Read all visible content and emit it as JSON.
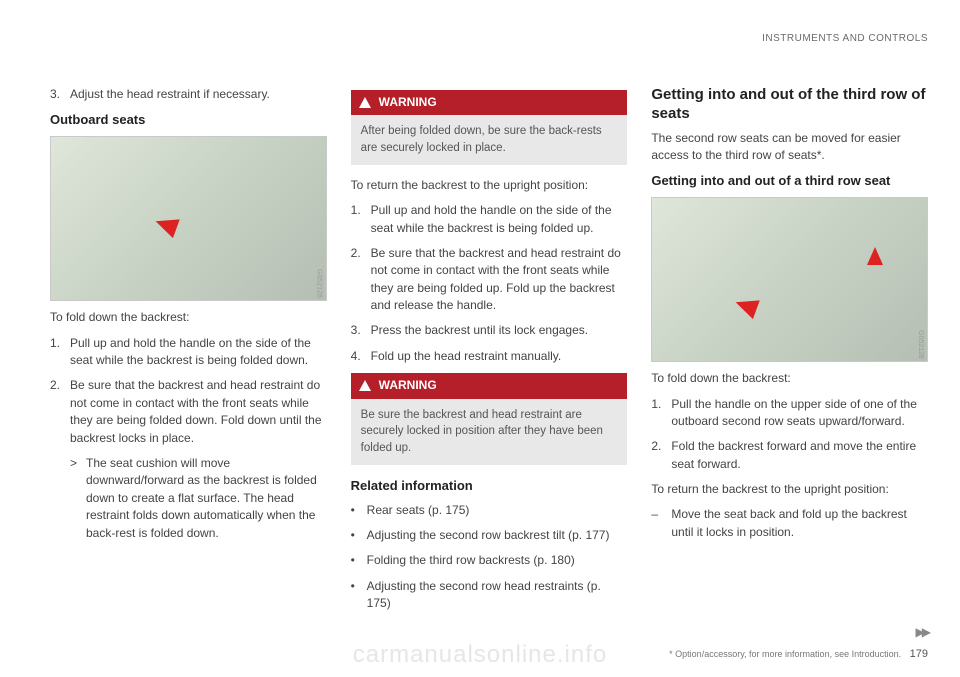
{
  "header": {
    "section": "INSTRUMENTS AND CONTROLS"
  },
  "col1": {
    "step3": {
      "num": "3.",
      "text": "Adjust the head restraint if necessary."
    },
    "outboard_title": "Outboard seats",
    "img_code": "G052126",
    "fold_intro": "To fold down the backrest:",
    "steps": [
      {
        "num": "1.",
        "text": "Pull up and hold the handle on the side of the seat while the backrest is being folded down."
      },
      {
        "num": "2.",
        "text": "Be sure that the backrest and head restraint do not come in contact with the front seats while they are being folded down. Fold down until the backrest locks in place."
      }
    ],
    "subnote": "The seat cushion will move downward/forward as the backrest is folded down to create a flat surface. The head restraint folds down automatically when the back-rest is folded down."
  },
  "col2": {
    "warn1": {
      "label": "WARNING",
      "body": "After being folded down, be sure the back-rests are securely locked in place."
    },
    "return_intro": "To return the backrest to the upright position:",
    "steps": [
      {
        "num": "1.",
        "text": "Pull up and hold the handle on the side of the seat while the backrest is being folded up."
      },
      {
        "num": "2.",
        "text": "Be sure that the backrest and head restraint do not come in contact with the front seats while they are being folded up. Fold up the backrest and release the handle."
      },
      {
        "num": "3.",
        "text": "Press the backrest until its lock engages."
      },
      {
        "num": "4.",
        "text": "Fold up the head restraint manually."
      }
    ],
    "warn2": {
      "label": "WARNING",
      "body": "Be sure the backrest and head restraint are securely locked in position after they have been folded up."
    },
    "related_title": "Related information",
    "related": [
      "Rear seats (p. 175)",
      "Adjusting the second row backrest tilt (p. 177)",
      "Folding the third row backrests (p. 180)",
      "Adjusting the second row head restraints (p. 175)"
    ]
  },
  "col3": {
    "title": "Getting into and out of the third row of seats",
    "intro": "The second row seats can be moved for easier access to the third row of seats*.",
    "sub": "Getting into and out of a third row seat",
    "img_code": "G052128",
    "fold_intro": "To fold down the backrest:",
    "steps": [
      {
        "num": "1.",
        "text": "Pull the handle on the upper side of one of the outboard second row seats upward/forward."
      },
      {
        "num": "2.",
        "text": "Fold the backrest forward and move the entire seat forward."
      }
    ],
    "return_intro": "To return the backrest to the upright position:",
    "return_step": "Move the seat back and fold up the backrest until it locks in position."
  },
  "footer": {
    "note": "* Option/accessory, for more information, see Introduction.",
    "page": "179",
    "cont": "▶▶"
  },
  "watermark": "carmanualsonline.info"
}
